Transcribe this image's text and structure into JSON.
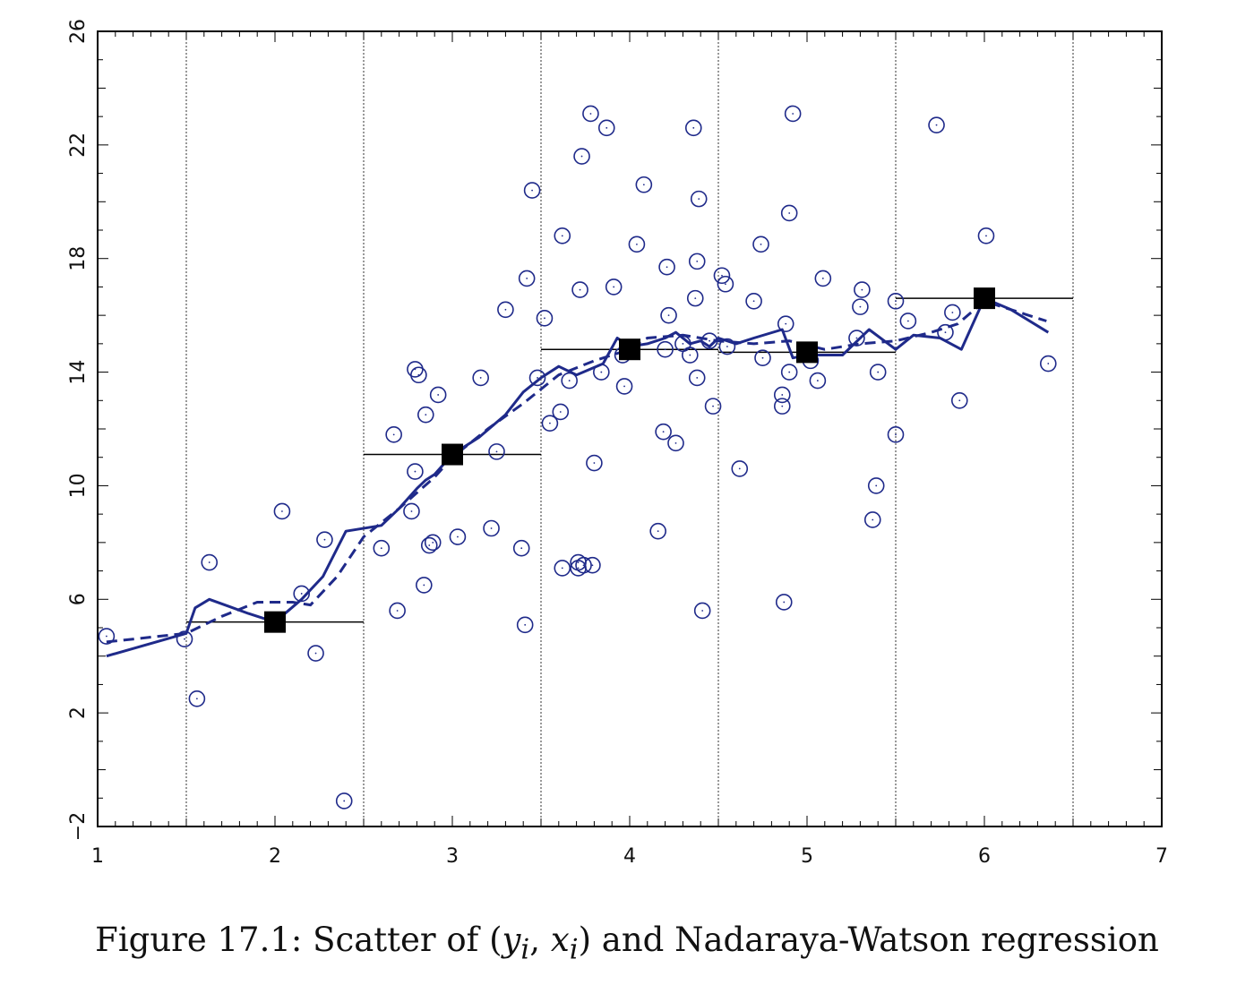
{
  "caption": {
    "prefix": "Figure 17.1: Scatter of (",
    "y": "y",
    "x": "x",
    "sub": "i",
    "sep": ", ",
    "suffix": ") and Nadaraya-Watson regression"
  },
  "chart_data": {
    "type": "scatter",
    "title": "",
    "xlabel": "",
    "ylabel": "",
    "xlim": [
      1,
      7
    ],
    "ylim": [
      -2,
      26
    ],
    "xticks": [
      1,
      2,
      3,
      4,
      5,
      6,
      7
    ],
    "yticks": [
      -2,
      2,
      6,
      10,
      14,
      18,
      22,
      26
    ],
    "bin_edges": [
      1.5,
      2.5,
      3.5,
      4.5,
      5.5,
      6.5
    ],
    "colors": {
      "series": "#1f2a8a",
      "bins": "#000000"
    },
    "series": [
      {
        "kind": "points",
        "x": [
          1.05,
          1.49,
          1.56,
          1.63,
          2.04,
          2.15,
          2.23,
          2.28,
          2.39,
          2.6,
          2.67,
          2.69,
          2.77,
          2.79,
          2.79,
          2.81,
          2.84,
          2.85,
          2.87,
          2.89,
          2.92,
          3.03,
          3.16,
          3.22,
          3.25,
          3.3,
          3.39,
          3.41,
          3.42,
          3.45,
          3.48,
          3.52,
          3.55,
          3.61,
          3.62,
          3.62,
          3.66,
          3.71,
          3.71,
          3.72,
          3.73,
          3.74,
          3.78,
          3.79,
          3.8,
          3.84,
          3.87,
          3.91,
          3.96,
          3.97,
          4.04,
          4.08,
          4.16,
          4.19,
          4.2,
          4.21,
          4.22,
          4.26,
          4.3,
          4.34,
          4.36,
          4.37,
          4.38,
          4.38,
          4.39,
          4.41,
          4.45,
          4.47,
          4.52,
          4.54,
          4.55,
          4.62,
          4.7,
          4.74,
          4.75,
          4.86,
          4.86,
          4.87,
          4.88,
          4.9,
          4.9,
          4.92,
          5.02,
          5.06,
          5.09,
          5.28,
          5.3,
          5.31,
          5.37,
          5.39,
          5.4,
          5.5,
          5.5,
          5.57,
          5.78,
          5.82,
          5.86,
          5.73,
          6.01,
          6.36
        ],
        "y": [
          4.7,
          4.6,
          2.5,
          7.3,
          9.1,
          6.2,
          4.1,
          8.1,
          -1.1,
          7.8,
          11.8,
          5.6,
          9.1,
          10.5,
          14.1,
          13.9,
          6.5,
          12.5,
          7.9,
          8.0,
          13.2,
          8.2,
          13.8,
          8.5,
          11.2,
          16.2,
          7.8,
          5.1,
          17.3,
          20.4,
          13.8,
          15.9,
          12.2,
          12.6,
          18.8,
          7.1,
          13.7,
          7.3,
          7.1,
          16.9,
          21.6,
          7.2,
          23.1,
          7.2,
          10.8,
          14.0,
          22.6,
          17.0,
          14.6,
          13.5,
          18.5,
          20.6,
          8.4,
          11.9,
          14.8,
          17.7,
          16.0,
          11.5,
          15.0,
          14.6,
          22.6,
          16.6,
          17.9,
          13.8,
          20.1,
          5.6,
          15.1,
          12.8,
          17.4,
          17.1,
          14.9,
          10.6,
          16.5,
          18.5,
          14.5,
          13.2,
          12.8,
          5.9,
          15.7,
          19.6,
          14.0,
          23.1,
          14.4,
          13.7,
          17.3,
          15.2,
          16.3,
          16.9,
          8.8,
          10.0,
          14.0,
          11.8,
          16.5,
          15.8,
          15.4,
          16.1,
          13.0,
          22.7,
          18.8,
          14.3
        ]
      },
      {
        "kind": "line-solid",
        "x": [
          1.05,
          1.5,
          1.55,
          1.63,
          1.85,
          2.0,
          2.15,
          2.27,
          2.4,
          2.6,
          2.7,
          2.8,
          2.85,
          2.9,
          3.0,
          3.15,
          3.3,
          3.4,
          3.5,
          3.6,
          3.7,
          3.85,
          3.93,
          4.0,
          4.1,
          4.2,
          4.26,
          4.34,
          4.4,
          4.45,
          4.5,
          4.6,
          4.7,
          4.86,
          4.92,
          5.0,
          5.2,
          5.35,
          5.5,
          5.6,
          5.75,
          5.87,
          6.0,
          6.15,
          6.36
        ],
        "y": [
          4.0,
          4.8,
          5.7,
          6.0,
          5.5,
          5.2,
          6.0,
          6.8,
          8.4,
          8.6,
          9.2,
          9.9,
          10.2,
          10.4,
          11.1,
          11.7,
          12.5,
          13.3,
          13.8,
          14.2,
          13.9,
          14.3,
          15.2,
          14.9,
          15.0,
          15.2,
          15.4,
          15.0,
          15.1,
          14.9,
          15.2,
          15.0,
          15.2,
          15.5,
          14.5,
          14.6,
          14.6,
          15.5,
          14.8,
          15.3,
          15.2,
          14.8,
          16.6,
          16.2,
          15.4
        ]
      },
      {
        "kind": "line-dashed",
        "x": [
          1.05,
          1.5,
          1.7,
          1.9,
          2.1,
          2.2,
          2.35,
          2.5,
          2.7,
          2.9,
          3.0,
          3.2,
          3.4,
          3.6,
          3.8,
          3.95,
          4.1,
          4.3,
          4.5,
          4.7,
          4.9,
          5.1,
          5.3,
          5.5,
          5.7,
          5.85,
          6.0,
          6.2,
          6.35
        ],
        "y": [
          4.5,
          4.8,
          5.4,
          5.9,
          5.9,
          5.8,
          6.8,
          8.2,
          9.2,
          10.3,
          11.0,
          12.0,
          12.9,
          13.9,
          14.4,
          14.7,
          15.2,
          15.3,
          15.1,
          15.0,
          15.1,
          14.8,
          15.0,
          15.1,
          15.4,
          15.7,
          16.5,
          16.1,
          15.8
        ]
      },
      {
        "kind": "bin-means",
        "x": [
          2,
          3,
          4,
          5,
          6
        ],
        "y": [
          5.2,
          11.1,
          14.8,
          14.7,
          16.6
        ]
      }
    ]
  }
}
